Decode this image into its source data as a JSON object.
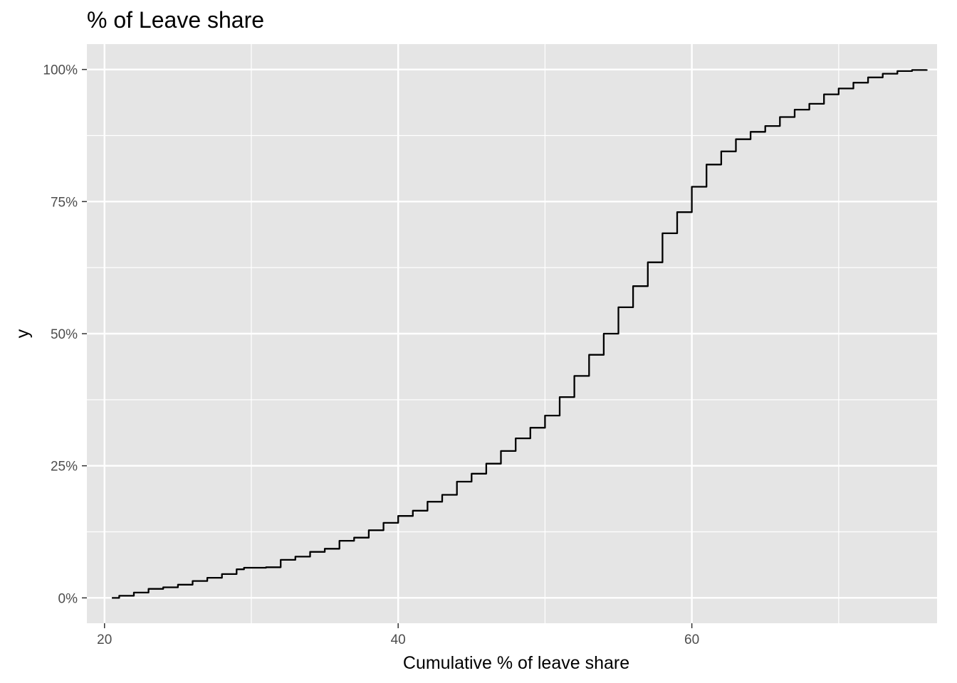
{
  "chart_data": {
    "type": "line",
    "title": "% of Leave share",
    "xlabel": "Cumulative % of leave share",
    "ylabel": "y",
    "xlim": [
      18.8,
      76.7
    ],
    "ylim": [
      -0.048,
      1.048
    ],
    "x_ticks": [
      20,
      40,
      60
    ],
    "x_tick_labels": [
      "20",
      "40",
      "60"
    ],
    "y_ticks": [
      0,
      0.25,
      0.5,
      0.75,
      1.0
    ],
    "y_tick_labels": [
      "0%",
      "25%",
      "50%",
      "75%",
      "100%"
    ],
    "grid": true,
    "legend": "none",
    "colors": {
      "panel": "#e5e5e5",
      "grid": "#ffffff",
      "line": "#000000",
      "tick_text": "#4d4d4d",
      "tick_mark": "#333333"
    },
    "series": [
      {
        "x": [
          20.5,
          21.0,
          22.0,
          23.0,
          24.0,
          25.0,
          26.0,
          27.0,
          28.0,
          29.0,
          29.5,
          30.0,
          31.0,
          32.0,
          33.0,
          34.0,
          35.0,
          36.0,
          37.0,
          38.0,
          39.0,
          40.0,
          41.0,
          42.0,
          43.0,
          44.0,
          45.0,
          46.0,
          47.0,
          48.0,
          49.0,
          50.0,
          51.0,
          52.0,
          53.0,
          54.0,
          55.0,
          56.0,
          57.0,
          58.0,
          59.0,
          60.0,
          61.0,
          62.0,
          63.0,
          64.0,
          65.0,
          66.0,
          67.0,
          68.0,
          69.0,
          70.0,
          71.0,
          72.0,
          73.0,
          74.0,
          75.0,
          76.0
        ],
        "y": [
          0.0,
          0.004,
          0.01,
          0.017,
          0.02,
          0.025,
          0.032,
          0.038,
          0.045,
          0.054,
          0.057,
          0.057,
          0.058,
          0.072,
          0.078,
          0.087,
          0.093,
          0.108,
          0.114,
          0.128,
          0.142,
          0.155,
          0.165,
          0.182,
          0.195,
          0.22,
          0.235,
          0.254,
          0.278,
          0.302,
          0.322,
          0.345,
          0.38,
          0.42,
          0.46,
          0.5,
          0.55,
          0.59,
          0.635,
          0.69,
          0.73,
          0.778,
          0.82,
          0.845,
          0.868,
          0.882,
          0.893,
          0.91,
          0.924,
          0.935,
          0.953,
          0.964,
          0.975,
          0.985,
          0.992,
          0.997,
          0.999,
          1.0
        ]
      }
    ]
  }
}
